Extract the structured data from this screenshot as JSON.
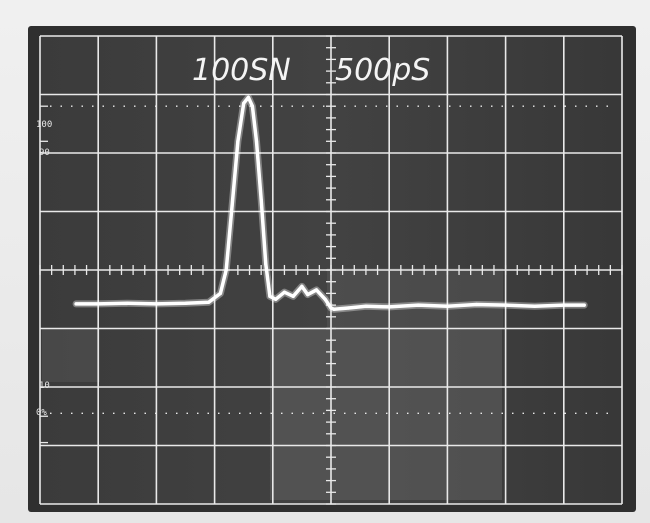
{
  "screen": {
    "label_left": "100SN",
    "label_right": "500pS"
  },
  "graticule_labels": {
    "top_100": "100",
    "top_90": "90",
    "bottom_10": "10",
    "bottom_0": "0%"
  },
  "colors": {
    "trace": "#ffffff",
    "grid": "#e9e9e9",
    "screen_bg": "#3a3a3a",
    "screen_light": "#6a6a6a"
  },
  "chart_data": {
    "type": "line",
    "title": "",
    "xlabel": "",
    "ylabel": "",
    "xlim": [
      0,
      10
    ],
    "ylim": [
      0,
      8
    ],
    "grid": true,
    "series": [
      {
        "values": [
          [
            0.62,
            3.42
          ],
          [
            1.0,
            3.42
          ],
          [
            1.5,
            3.43
          ],
          [
            2.0,
            3.42
          ],
          [
            2.5,
            3.43
          ],
          [
            2.9,
            3.45
          ],
          [
            3.1,
            3.6
          ],
          [
            3.2,
            4.0
          ],
          [
            3.3,
            5.1
          ],
          [
            3.4,
            6.2
          ],
          [
            3.5,
            6.85
          ],
          [
            3.58,
            6.95
          ],
          [
            3.65,
            6.8
          ],
          [
            3.72,
            6.2
          ],
          [
            3.8,
            5.2
          ],
          [
            3.88,
            4.1
          ],
          [
            3.95,
            3.55
          ],
          [
            4.05,
            3.5
          ],
          [
            4.2,
            3.62
          ],
          [
            4.35,
            3.55
          ],
          [
            4.5,
            3.72
          ],
          [
            4.6,
            3.58
          ],
          [
            4.75,
            3.66
          ],
          [
            4.9,
            3.5
          ],
          [
            5.0,
            3.35
          ],
          [
            5.05,
            3.33
          ],
          [
            5.3,
            3.35
          ],
          [
            5.6,
            3.38
          ],
          [
            6.0,
            3.37
          ],
          [
            6.5,
            3.4
          ],
          [
            7.0,
            3.38
          ],
          [
            7.5,
            3.41
          ],
          [
            8.0,
            3.4
          ],
          [
            8.5,
            3.38
          ],
          [
            9.0,
            3.4
          ],
          [
            9.35,
            3.4
          ]
        ]
      }
    ]
  }
}
